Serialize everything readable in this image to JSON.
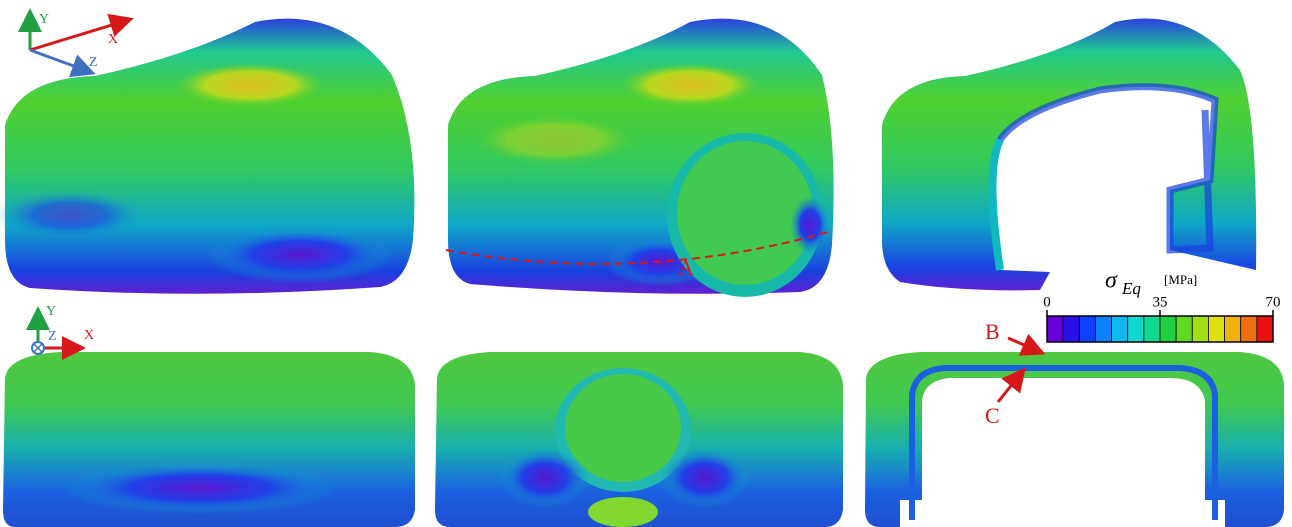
{
  "triad_top": {
    "y": "Y",
    "x": "X",
    "z": "Z"
  },
  "triad_bottom": {
    "y": "Y",
    "z": "Z",
    "x": "X"
  },
  "callouts": {
    "a": "A",
    "b": "B",
    "c": "C"
  },
  "colorbar": {
    "symbol": "σ",
    "subscript": "Eq",
    "unit": "[MPa]",
    "ticks": [
      0,
      35,
      70
    ],
    "colors": [
      "#6a00d8",
      "#2a10e8",
      "#1040ff",
      "#1080ff",
      "#10b8f0",
      "#10d8d0",
      "#10d890",
      "#20d040",
      "#60d820",
      "#a0e010",
      "#e0e010",
      "#f0b010",
      "#f07010",
      "#e81010"
    ]
  }
}
